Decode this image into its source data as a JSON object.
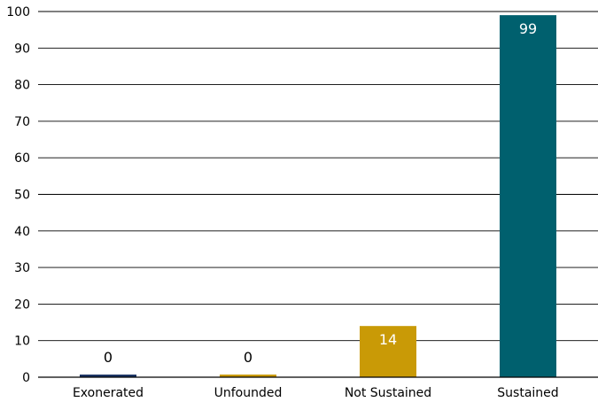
{
  "chart_data": {
    "type": "bar",
    "title": "",
    "xlabel": "",
    "ylabel": "",
    "ylim": [
      0,
      100
    ],
    "yticks": [
      0,
      10,
      20,
      30,
      40,
      50,
      60,
      70,
      80,
      90,
      100
    ],
    "grid": true,
    "categories": [
      "Exonerated",
      "Unfounded",
      "Not Sustained",
      "Sustained"
    ],
    "values": [
      0,
      0,
      14,
      99
    ],
    "data_labels": [
      "0",
      "0",
      "14",
      "99"
    ],
    "colors": [
      "#1c3564",
      "#c99a06",
      "#c99a06",
      "#00606e"
    ],
    "label_colors": [
      "#000000",
      "#000000",
      "#ffffff",
      "#ffffff"
    ]
  }
}
